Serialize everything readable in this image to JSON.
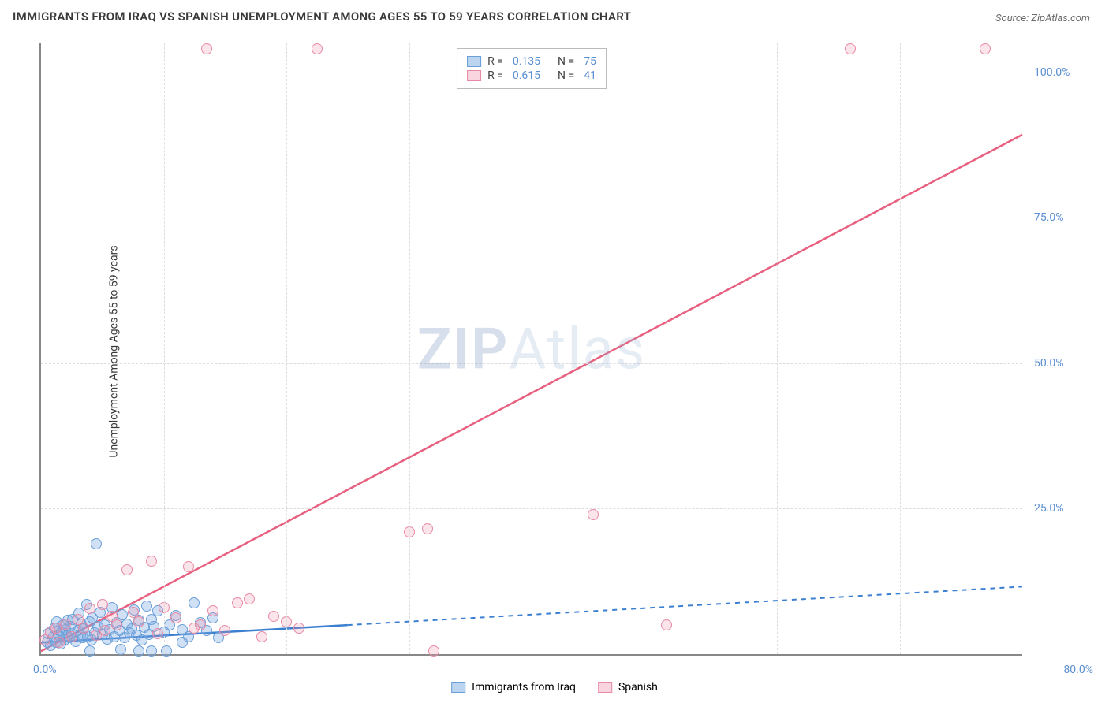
{
  "title": "IMMIGRANTS FROM IRAQ VS SPANISH UNEMPLOYMENT AMONG AGES 55 TO 59 YEARS CORRELATION CHART",
  "source": "Source: ZipAtlas.com",
  "ylabel": "Unemployment Among Ages 55 to 59 years",
  "watermark_a": "ZIP",
  "watermark_b": "Atlas",
  "chart": {
    "type": "scatter",
    "xlim": [
      0,
      80
    ],
    "ylim": [
      0,
      105
    ],
    "x_tick_labels": {
      "min": "0.0%",
      "max": "80.0%"
    },
    "y_ticks": [
      25,
      50,
      75,
      100
    ],
    "y_tick_labels": [
      "25.0%",
      "50.0%",
      "75.0%",
      "100.0%"
    ],
    "gridline_color": "#dddddd",
    "background_color": "#ffffff",
    "axis_color": "#888888",
    "tick_label_color": "#5b8fd1",
    "series": [
      {
        "name": "Immigrants from Iraq",
        "color_fill": "rgba(120,170,225,0.35)",
        "color_stroke": "#6a9fd8",
        "trend_color": "#3b7fd1",
        "trend_solid_max_x": 25,
        "trend_dashed": true,
        "R": 0.135,
        "N": 75,
        "regression": {
          "slope": 0.12,
          "intercept": 2.0
        },
        "points": [
          [
            0.5,
            2
          ],
          [
            0.6,
            3.5
          ],
          [
            0.8,
            1.5
          ],
          [
            1.0,
            3.0
          ],
          [
            1.1,
            4.5
          ],
          [
            1.2,
            2
          ],
          [
            1.3,
            5.5
          ],
          [
            1.4,
            3.2
          ],
          [
            1.5,
            4.0
          ],
          [
            1.6,
            1.8
          ],
          [
            1.7,
            3.8
          ],
          [
            1.8,
            5.0
          ],
          [
            1.9,
            2.5
          ],
          [
            2.0,
            4.2
          ],
          [
            2.1,
            3.1
          ],
          [
            2.2,
            5.8
          ],
          [
            2.3,
            2.9
          ],
          [
            2.4,
            4.7
          ],
          [
            2.5,
            3.5
          ],
          [
            2.6,
            6.0
          ],
          [
            2.8,
            2.2
          ],
          [
            3.0,
            4.0
          ],
          [
            3.1,
            7.0
          ],
          [
            3.2,
            3.3
          ],
          [
            3.3,
            5.2
          ],
          [
            3.4,
            2.8
          ],
          [
            3.5,
            4.4
          ],
          [
            3.7,
            8.5
          ],
          [
            3.8,
            3.0
          ],
          [
            4.0,
            5.6
          ],
          [
            4.1,
            2.4
          ],
          [
            4.2,
            6.2
          ],
          [
            4.4,
            3.6
          ],
          [
            4.5,
            19.0
          ],
          [
            4.6,
            4.8
          ],
          [
            4.8,
            7.2
          ],
          [
            5.0,
            3.4
          ],
          [
            5.2,
            5.0
          ],
          [
            5.4,
            2.6
          ],
          [
            5.6,
            4.2
          ],
          [
            5.8,
            8.0
          ],
          [
            6.0,
            3.0
          ],
          [
            6.2,
            5.4
          ],
          [
            6.4,
            4.0
          ],
          [
            6.6,
            6.8
          ],
          [
            6.8,
            2.8
          ],
          [
            7.0,
            5.2
          ],
          [
            7.2,
            3.6
          ],
          [
            7.4,
            4.4
          ],
          [
            7.6,
            7.6
          ],
          [
            7.8,
            3.2
          ],
          [
            8.0,
            5.8
          ],
          [
            8.2,
            2.4
          ],
          [
            8.4,
            4.6
          ],
          [
            8.6,
            8.2
          ],
          [
            8.8,
            3.4
          ],
          [
            9.0,
            6.0
          ],
          [
            9.2,
            4.8
          ],
          [
            9.5,
            7.4
          ],
          [
            10.0,
            3.8
          ],
          [
            10.2,
            0.5
          ],
          [
            10.5,
            5.0
          ],
          [
            11.0,
            6.6
          ],
          [
            11.5,
            4.2
          ],
          [
            12.0,
            3.0
          ],
          [
            12.5,
            8.8
          ],
          [
            13.0,
            5.4
          ],
          [
            13.5,
            4.0
          ],
          [
            14.0,
            6.2
          ],
          [
            14.5,
            2.8
          ],
          [
            4.0,
            0.5
          ],
          [
            6.5,
            0.8
          ],
          [
            9.0,
            0.5
          ],
          [
            8.0,
            0.6
          ],
          [
            11.5,
            2.0
          ]
        ]
      },
      {
        "name": "Spanish",
        "color_fill": "rgba(240,150,175,0.25)",
        "color_stroke": "#e88aa5",
        "trend_color": "#e8607f",
        "trend_solid_max_x": 80,
        "trend_dashed": false,
        "R": 0.615,
        "N": 41,
        "regression": {
          "slope": 1.11,
          "intercept": 0.5
        },
        "points": [
          [
            0.3,
            2.5
          ],
          [
            0.8,
            3.8
          ],
          [
            1.2,
            4.5
          ],
          [
            1.5,
            2.0
          ],
          [
            2.0,
            5.2
          ],
          [
            2.5,
            3.0
          ],
          [
            3.0,
            6.0
          ],
          [
            3.5,
            4.5
          ],
          [
            4.0,
            7.8
          ],
          [
            4.5,
            3.2
          ],
          [
            5.0,
            8.5
          ],
          [
            5.2,
            4.0
          ],
          [
            5.8,
            6.5
          ],
          [
            6.2,
            5.0
          ],
          [
            7.0,
            14.5
          ],
          [
            7.5,
            7.2
          ],
          [
            8.0,
            5.5
          ],
          [
            9.0,
            16.0
          ],
          [
            9.5,
            3.5
          ],
          [
            10.0,
            8.0
          ],
          [
            11.0,
            6.2
          ],
          [
            12.0,
            15.0
          ],
          [
            12.5,
            4.5
          ],
          [
            13.0,
            5.0
          ],
          [
            14.0,
            7.5
          ],
          [
            15.0,
            4.0
          ],
          [
            16.0,
            8.8
          ],
          [
            17.0,
            9.5
          ],
          [
            18.0,
            3.0
          ],
          [
            19.0,
            6.5
          ],
          [
            20.0,
            5.5
          ],
          [
            13.5,
            104
          ],
          [
            22.5,
            104
          ],
          [
            30.0,
            21.0
          ],
          [
            31.5,
            21.5
          ],
          [
            32.0,
            0.5
          ],
          [
            45.0,
            24.0
          ],
          [
            51.0,
            5.0
          ],
          [
            66.0,
            104
          ],
          [
            77.0,
            104
          ],
          [
            21.0,
            4.5
          ]
        ]
      }
    ]
  },
  "legend_top": {
    "r_label": "R =",
    "n_label": "N ="
  },
  "legend_bottom": [
    {
      "swatch": "blue",
      "label": "Immigrants from Iraq"
    },
    {
      "swatch": "pink",
      "label": "Spanish"
    }
  ]
}
